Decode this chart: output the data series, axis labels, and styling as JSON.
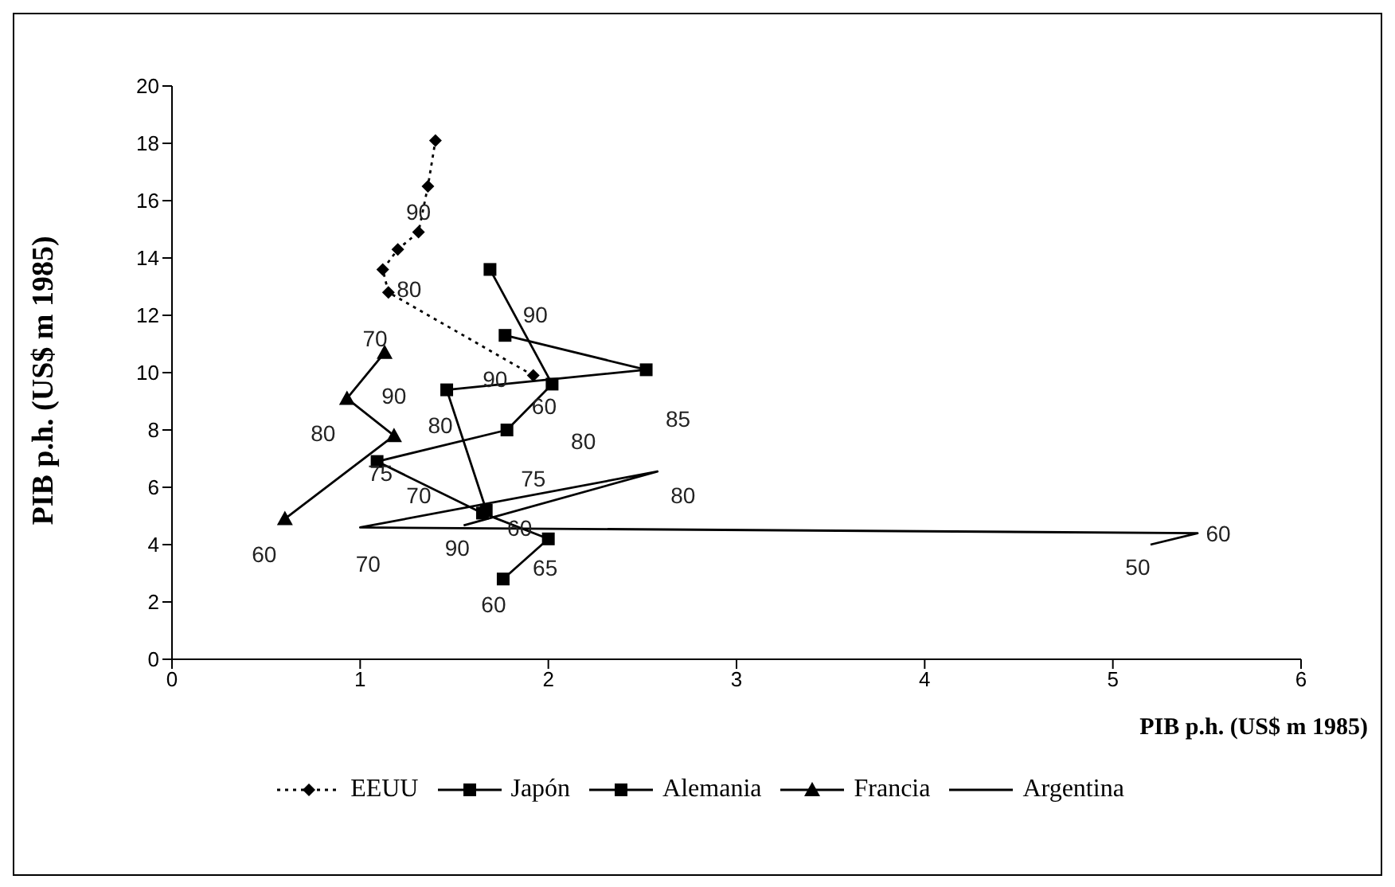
{
  "chart_data": {
    "type": "line",
    "xlabel": "PIB p.h. (US$ m 1985)",
    "ylabel": "PIB p.h. (US$ m 1985)",
    "xlim": [
      0,
      6
    ],
    "xticks": [
      0,
      1,
      2,
      3,
      4,
      5,
      6
    ],
    "ylim": [
      0,
      20
    ],
    "yticks": [
      0,
      2,
      4,
      6,
      8,
      10,
      12,
      14,
      16,
      18,
      20
    ],
    "grid": false,
    "legend": "bottom",
    "series": [
      {
        "name": "EEUU",
        "color": "#000000",
        "line_style": "dotted",
        "marker": "diamond",
        "x": [
          1.92,
          1.15,
          1.12,
          1.2,
          1.31,
          1.36,
          1.4
        ],
        "values": [
          9.9,
          12.8,
          13.6,
          14.3,
          14.9,
          16.5,
          18.1
        ]
      },
      {
        "name": "Japón",
        "color": "#000000",
        "line_style": "solid",
        "marker": "square",
        "x": [
          1.76,
          2.0,
          1.65,
          1.09,
          1.78,
          2.02,
          1.69
        ],
        "values": [
          2.8,
          4.2,
          5.1,
          6.9,
          8.0,
          9.6,
          13.6
        ]
      },
      {
        "name": "Alemania",
        "color": "#000000",
        "line_style": "solid",
        "marker": "square",
        "x": [
          1.67,
          1.46,
          2.52,
          1.77
        ],
        "values": [
          5.2,
          9.4,
          10.1,
          11.3
        ]
      },
      {
        "name": "Francia",
        "color": "#000000",
        "line_style": "solid",
        "marker": "triangle",
        "x": [
          0.6,
          1.18,
          0.93,
          1.13
        ],
        "values": [
          4.9,
          7.8,
          9.1,
          10.7
        ]
      },
      {
        "name": "Argentina",
        "color": "#000000",
        "line_style": "solid",
        "marker": "none",
        "x": [
          5.2,
          5.45,
          1.0,
          2.58,
          1.55
        ],
        "values": [
          4.0,
          4.4,
          4.6,
          6.55,
          4.67
        ]
      }
    ],
    "annotations": [
      {
        "text": "90",
        "x": 1.31,
        "y": 14.9
      },
      {
        "text": "80",
        "x": 1.15,
        "y": 12.8
      },
      {
        "text": "90",
        "x": 1.92,
        "y": 9.9
      },
      {
        "text": "90",
        "x": 1.77,
        "y": 11.3
      },
      {
        "text": "60",
        "x": 2.02,
        "y": 9.6
      },
      {
        "text": "80",
        "x": 1.46,
        "y": 9.4
      },
      {
        "text": "80",
        "x": 1.78,
        "y": 8.0
      },
      {
        "text": "85",
        "x": 2.52,
        "y": 10.1
      },
      {
        "text": "70",
        "x": 1.13,
        "y": 10.7
      },
      {
        "text": "90",
        "x": 1.18,
        "y": 7.8
      },
      {
        "text": "80",
        "x": 0.93,
        "y": 9.1
      },
      {
        "text": "60",
        "x": 0.6,
        "y": 4.9
      },
      {
        "text": "75",
        "x": 1.09,
        "y": 6.9
      },
      {
        "text": "70",
        "x": 1.65,
        "y": 5.1
      },
      {
        "text": "75",
        "x": 1.92,
        "y": 5.74
      },
      {
        "text": "80",
        "x": 2.58,
        "y": 6.55
      },
      {
        "text": "60",
        "x": 1.67,
        "y": 5.2
      },
      {
        "text": "90",
        "x": 1.55,
        "y": 4.67
      },
      {
        "text": "70",
        "x": 1.0,
        "y": 4.6
      },
      {
        "text": "65",
        "x": 2.0,
        "y": 4.2
      },
      {
        "text": "60",
        "x": 1.76,
        "y": 2.8
      },
      {
        "text": "50",
        "x": 5.2,
        "y": 4.0
      },
      {
        "text": "60",
        "x": 5.45,
        "y": 4.4
      }
    ]
  }
}
